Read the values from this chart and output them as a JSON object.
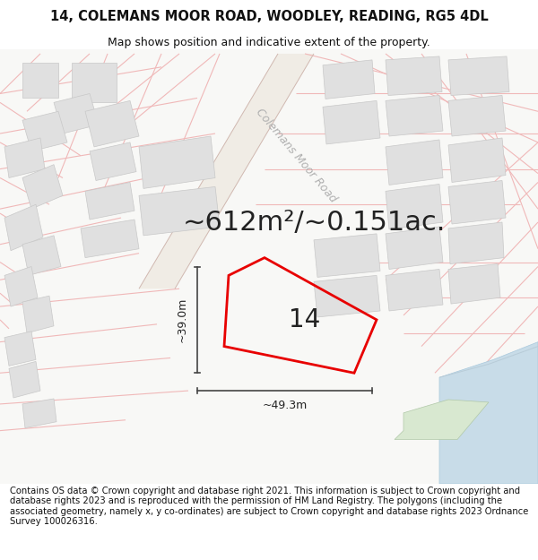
{
  "title_line1": "14, COLEMANS MOOR ROAD, WOODLEY, READING, RG5 4DL",
  "title_line2": "Map shows position and indicative extent of the property.",
  "area_text": "~612m²/~0.151ac.",
  "number_label": "14",
  "dim_vertical": "~39.0m",
  "dim_horizontal": "~49.3m",
  "road_label": "Colemans Moor Road",
  "footer_text": "Contains OS data © Crown copyright and database right 2021. This information is subject to Crown copyright and database rights 2023 and is reproduced with the permission of HM Land Registry. The polygons (including the associated geometry, namely x, y co-ordinates) are subject to Crown copyright and database rights 2023 Ordnance Survey 100026316.",
  "map_bg": "#f8f8f6",
  "road_pink": "#f0b8b8",
  "road_outline": "#e89898",
  "building_fill": "#e0e0e0",
  "building_edge": "#c8c8c8",
  "highlight_red": "#e80000",
  "water_fill": "#c8dce8",
  "green_fill": "#d8e8d0",
  "dim_line_color": "#444444",
  "text_dark": "#222222",
  "text_gray": "#aaaaaa",
  "title_fontsize": 10.5,
  "subtitle_fontsize": 9,
  "area_fontsize": 22,
  "dim_fontsize": 9,
  "footer_fontsize": 7.2,
  "road_label_fontsize": 9,
  "number_fontsize": 20
}
